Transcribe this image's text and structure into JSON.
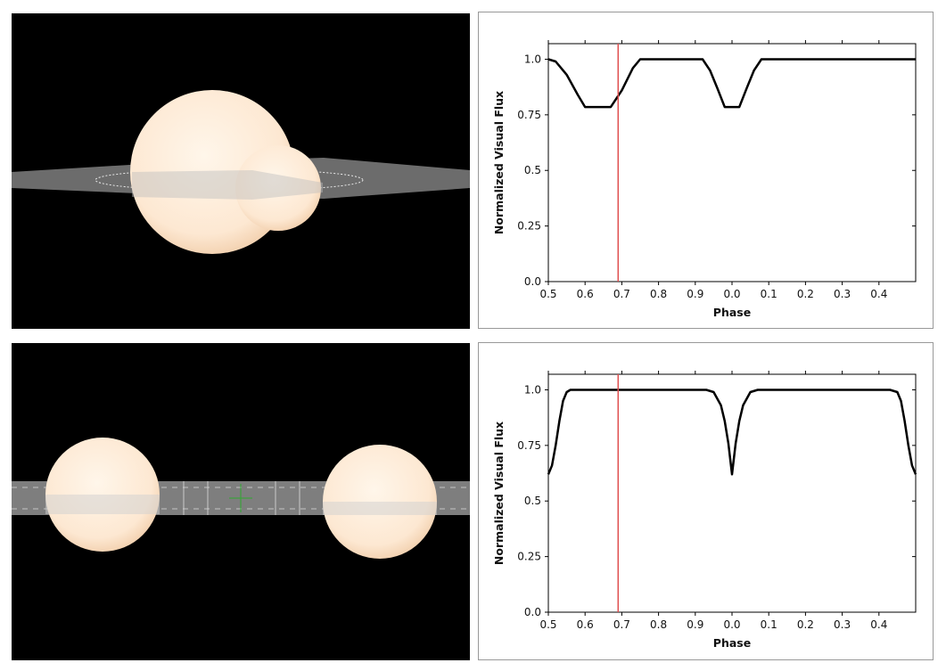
{
  "colors": {
    "curve": "#000000",
    "marker": "#e05050",
    "star": "#fdebd8",
    "plane": "#c8c8c8"
  },
  "chart_data": [
    {
      "type": "line",
      "xlabel": "Phase",
      "ylabel": "Normalized Visual Flux",
      "x_tick_labels": [
        "0.5",
        "0.6",
        "0.7",
        "0.8",
        "0.9",
        "0.0",
        "0.1",
        "0.2",
        "0.3",
        "0.4"
      ],
      "y_tick_labels": [
        "0.0",
        "0.25",
        "0.5",
        "0.75",
        "1.0"
      ],
      "y_ticks": [
        0,
        0.25,
        0.5,
        0.75,
        1.0
      ],
      "xlim": [
        0.5,
        1.5
      ],
      "ylim": [
        0,
        1.07
      ],
      "marker_phase": 0.69,
      "series": [
        {
          "x": [
            0.5,
            0.52,
            0.55,
            0.58,
            0.6,
            0.62,
            0.65,
            0.67,
            0.7,
            0.73,
            0.75,
            0.8,
            0.85,
            0.9,
            0.92,
            0.94,
            0.96,
            0.98,
            1.0,
            1.02,
            1.04,
            1.06,
            1.08,
            1.1,
            1.2,
            1.3,
            1.4,
            1.5
          ],
          "y": [
            1.0,
            0.99,
            0.93,
            0.84,
            0.785,
            0.785,
            0.785,
            0.785,
            0.86,
            0.96,
            1.0,
            1.0,
            1.0,
            1.0,
            1.0,
            0.95,
            0.87,
            0.785,
            0.785,
            0.785,
            0.87,
            0.95,
            1.0,
            1.0,
            1.0,
            1.0,
            1.0,
            1.0
          ]
        }
      ]
    },
    {
      "type": "line",
      "xlabel": "Phase",
      "ylabel": "Normalized Visual Flux",
      "x_tick_labels": [
        "0.5",
        "0.6",
        "0.7",
        "0.8",
        "0.9",
        "0.0",
        "0.1",
        "0.2",
        "0.3",
        "0.4"
      ],
      "y_tick_labels": [
        "0.0",
        "0.25",
        "0.5",
        "0.75",
        "1.0"
      ],
      "y_ticks": [
        0,
        0.25,
        0.5,
        0.75,
        1.0
      ],
      "xlim": [
        0.5,
        1.5
      ],
      "ylim": [
        0,
        1.07
      ],
      "marker_phase": 0.69,
      "series": [
        {
          "x": [
            0.5,
            0.51,
            0.52,
            0.53,
            0.54,
            0.55,
            0.56,
            0.6,
            0.7,
            0.8,
            0.9,
            0.93,
            0.95,
            0.97,
            0.98,
            0.99,
            1.0,
            1.01,
            1.02,
            1.03,
            1.05,
            1.07,
            1.2,
            1.3,
            1.43,
            1.45,
            1.46,
            1.47,
            1.48,
            1.49,
            1.5
          ],
          "y": [
            0.62,
            0.66,
            0.75,
            0.86,
            0.95,
            0.99,
            1.0,
            1.0,
            1.0,
            1.0,
            1.0,
            1.0,
            0.99,
            0.93,
            0.86,
            0.76,
            0.62,
            0.76,
            0.86,
            0.93,
            0.99,
            1.0,
            1.0,
            1.0,
            1.0,
            0.99,
            0.95,
            0.86,
            0.75,
            0.66,
            0.62
          ]
        }
      ]
    }
  ]
}
